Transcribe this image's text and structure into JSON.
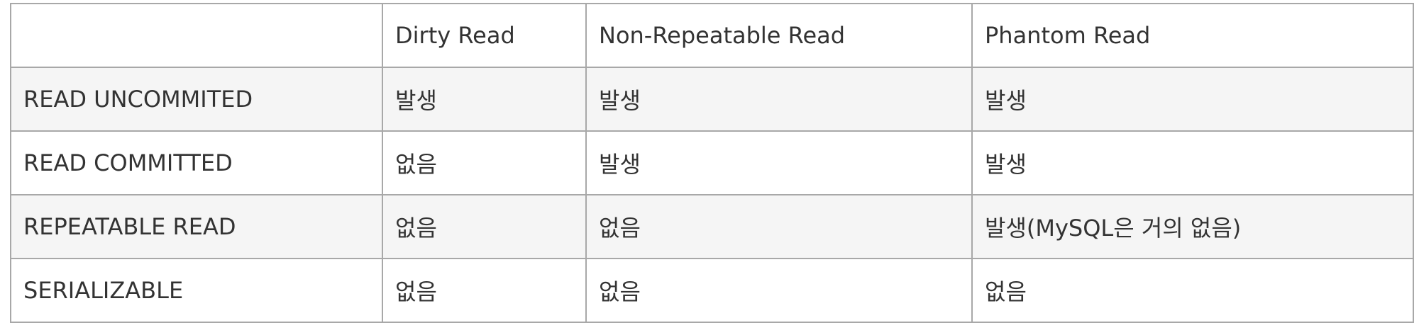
{
  "table": {
    "headers": [
      "",
      "Dirty Read",
      "Non-Repeatable Read",
      "Phantom Read"
    ],
    "rows": [
      [
        "READ UNCOMMITED",
        "발생",
        "발생",
        "발생"
      ],
      [
        "READ COMMITTED",
        "없음",
        "발생",
        "발생"
      ],
      [
        "REPEATABLE READ",
        "없음",
        "없음",
        "발생(MySQL은 거의 없음)"
      ],
      [
        "SERIALIZABLE",
        "없음",
        "없음",
        "없음"
      ]
    ]
  }
}
